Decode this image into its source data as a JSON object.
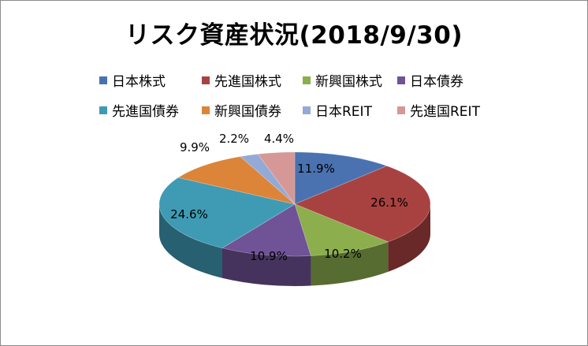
{
  "chart_data": {
    "type": "pie",
    "title": "リスク資産状況(2018/9/30)",
    "categories": [
      "日本株式",
      "先進国株式",
      "新興国株式",
      "日本債券",
      "先進国債券",
      "新興国債券",
      "日本REIT",
      "先進国REIT"
    ],
    "values": [
      11.9,
      26.1,
      10.2,
      10.9,
      24.6,
      9.9,
      2.2,
      4.4
    ],
    "data_labels": [
      "11.9%",
      "26.1%",
      "10.2%",
      "10.9%",
      "24.6%",
      "9.9%",
      "2.2%",
      "4.4%"
    ],
    "colors": [
      "#4a72b0",
      "#a84240",
      "#8cae4d",
      "#6f5396",
      "#3f9bb4",
      "#dc8438",
      "#93aad6",
      "#d69896"
    ],
    "unit": "%",
    "legend_position": "top",
    "style": "3d-pie"
  }
}
